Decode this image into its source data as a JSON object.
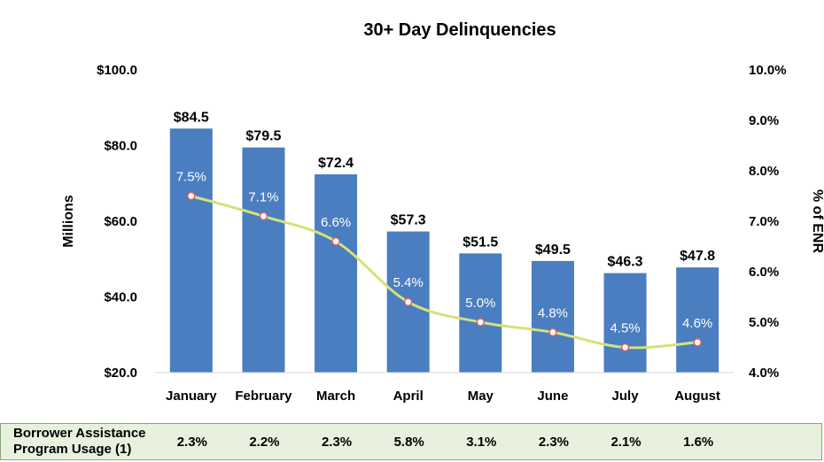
{
  "chart_data": {
    "type": "bar",
    "title": "30+ Day Delinquencies",
    "categories": [
      "January",
      "February",
      "March",
      "April",
      "May",
      "June",
      "July",
      "August"
    ],
    "series": [
      {
        "values": [
          84.5,
          79.5,
          72.4,
          57.3,
          51.5,
          49.5,
          46.3,
          47.8
        ],
        "labels": [
          "$84.5",
          "$79.5",
          "$72.4",
          "$57.3",
          "$51.5",
          "$49.5",
          "$46.3",
          "$47.8"
        ],
        "axis": "left",
        "color": "#4a7ec0"
      },
      {
        "values": [
          7.5,
          7.1,
          6.6,
          5.4,
          5.0,
          4.8,
          4.5,
          4.6
        ],
        "labels": [
          "7.5%",
          "7.1%",
          "6.6%",
          "5.4%",
          "5.0%",
          "4.8%",
          "4.5%",
          "4.6%"
        ],
        "axis": "right",
        "type": "line",
        "color": "#d4e27a"
      }
    ],
    "ylabel": "Millions",
    "ylabel_right": "% of ENR",
    "ylim": [
      20,
      100
    ],
    "ylim_right": [
      4,
      10
    ],
    "y_ticks": [
      "$100.0",
      "$80.0",
      "$60.0",
      "$40.0",
      "$20.0"
    ],
    "y_ticks_right": [
      "10.0%",
      "9.0%",
      "8.0%",
      "7.0%",
      "6.0%",
      "5.0%",
      "4.0%"
    ],
    "grid": false
  },
  "footer": {
    "label_line1": "Borrower Assistance",
    "label_line2": "Program Usage (1)",
    "values": [
      "2.3%",
      "2.2%",
      "2.3%",
      "5.8%",
      "3.1%",
      "2.3%",
      "2.1%",
      "1.6%"
    ]
  }
}
